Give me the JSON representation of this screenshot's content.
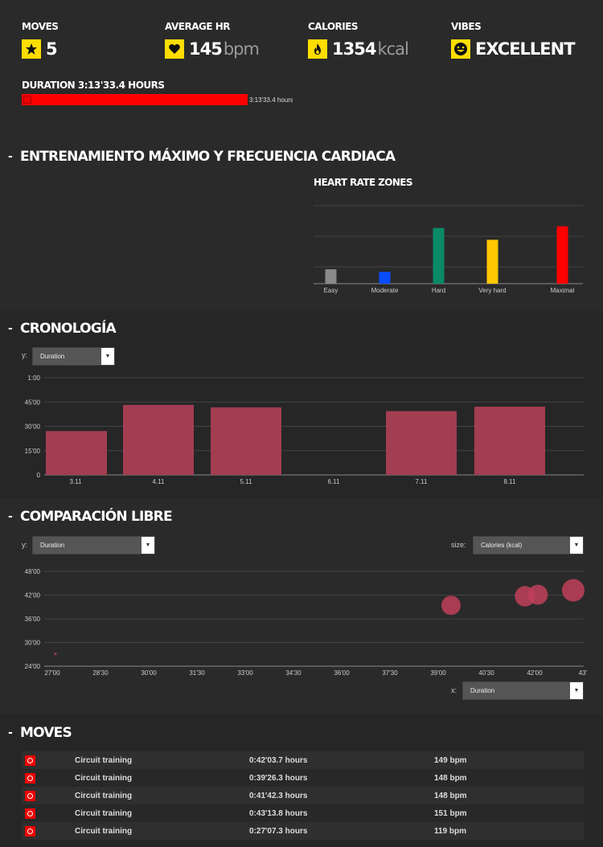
{
  "summary": {
    "moves": {
      "label": "MOVES",
      "value": "5",
      "icon": "star-icon"
    },
    "avg_hr": {
      "label": "AVERAGE HR",
      "value": "145",
      "unit": "bpm",
      "icon": "heart-icon"
    },
    "calories": {
      "label": "CALORIES",
      "value": "1354",
      "unit": "kcal",
      "icon": "flame-icon"
    },
    "vibes": {
      "label": "VIBES",
      "value": "EXCELLENT",
      "icon": "smiley-icon"
    },
    "duration_label": "DURATION 3:13'33.4 HOURS",
    "duration_text": "3:13'33.4 hours",
    "duration_fraction": 1.0
  },
  "sections": {
    "training": {
      "title": "ENTRENAMIENTO MÁXIMO Y FRECUENCIA CARDIACA"
    },
    "chronology": {
      "title": "CRONOLOGÍA",
      "y_label": "y:",
      "y_select": "Duration"
    },
    "comparison": {
      "title": "COMPARACIÓN LIBRE",
      "y_label": "y:",
      "y_select": "Duration",
      "size_label": "size:",
      "size_select": "Calories (kcal)",
      "x_label": "x:",
      "x_select": "Duration"
    },
    "moves": {
      "title": "MOVES"
    }
  },
  "chart_data": [
    {
      "type": "bar",
      "title": "HEART RATE ZONES",
      "categories": [
        "Easy",
        "Moderate",
        "Hard",
        "Very hard",
        "Maximal"
      ],
      "values": [
        17,
        14,
        66,
        52,
        68
      ],
      "ylim": [
        0,
        100
      ],
      "colors": [
        "#8a8a8a",
        "#0a4dff",
        "#0a8a66",
        "#ffc800",
        "#ff0000"
      ]
    },
    {
      "type": "bar",
      "categories": [
        "3.11",
        "4.11",
        "5.11",
        "6.11",
        "7.11",
        "8.11"
      ],
      "values": [
        27.1,
        43.2,
        41.7,
        0,
        39.4,
        42.1
      ],
      "yticks": [
        "0",
        "15'00",
        "30'00",
        "45'00",
        "1:00"
      ],
      "ylim": [
        0,
        60
      ],
      "color": "#a33d52"
    },
    {
      "type": "scatter",
      "xticks": [
        "27'00",
        "28'30",
        "30'00",
        "31'30",
        "33'00",
        "34'30",
        "36'00",
        "37'30",
        "39'00",
        "40'30",
        "42'00",
        "43'"
      ],
      "yticks": [
        "24'00",
        "30'00",
        "36'00",
        "42'00",
        "48'00"
      ],
      "xlim": [
        27,
        43.5
      ],
      "ylim": [
        24,
        48
      ],
      "points": [
        {
          "x": 27.1,
          "y": 27.1,
          "size": 1
        },
        {
          "x": 39.4,
          "y": 39.4,
          "size": 285
        },
        {
          "x": 41.7,
          "y": 41.7,
          "size": 320
        },
        {
          "x": 42.1,
          "y": 42.1,
          "size": 305
        },
        {
          "x": 43.2,
          "y": 43.2,
          "size": 390
        }
      ],
      "color": "#c0405a"
    }
  ],
  "moves_list": [
    {
      "name": "Circuit training",
      "duration": "0:42'03.7 hours",
      "hr": "149 bpm"
    },
    {
      "name": "Circuit training",
      "duration": "0:39'26.3 hours",
      "hr": "148 bpm"
    },
    {
      "name": "Circuit training",
      "duration": "0:41'42.3 hours",
      "hr": "148 bpm"
    },
    {
      "name": "Circuit training",
      "duration": "0:43'13.8 hours",
      "hr": "151 bpm"
    },
    {
      "name": "Circuit training",
      "duration": "0:27'07.3 hours",
      "hr": "119 bpm"
    }
  ]
}
